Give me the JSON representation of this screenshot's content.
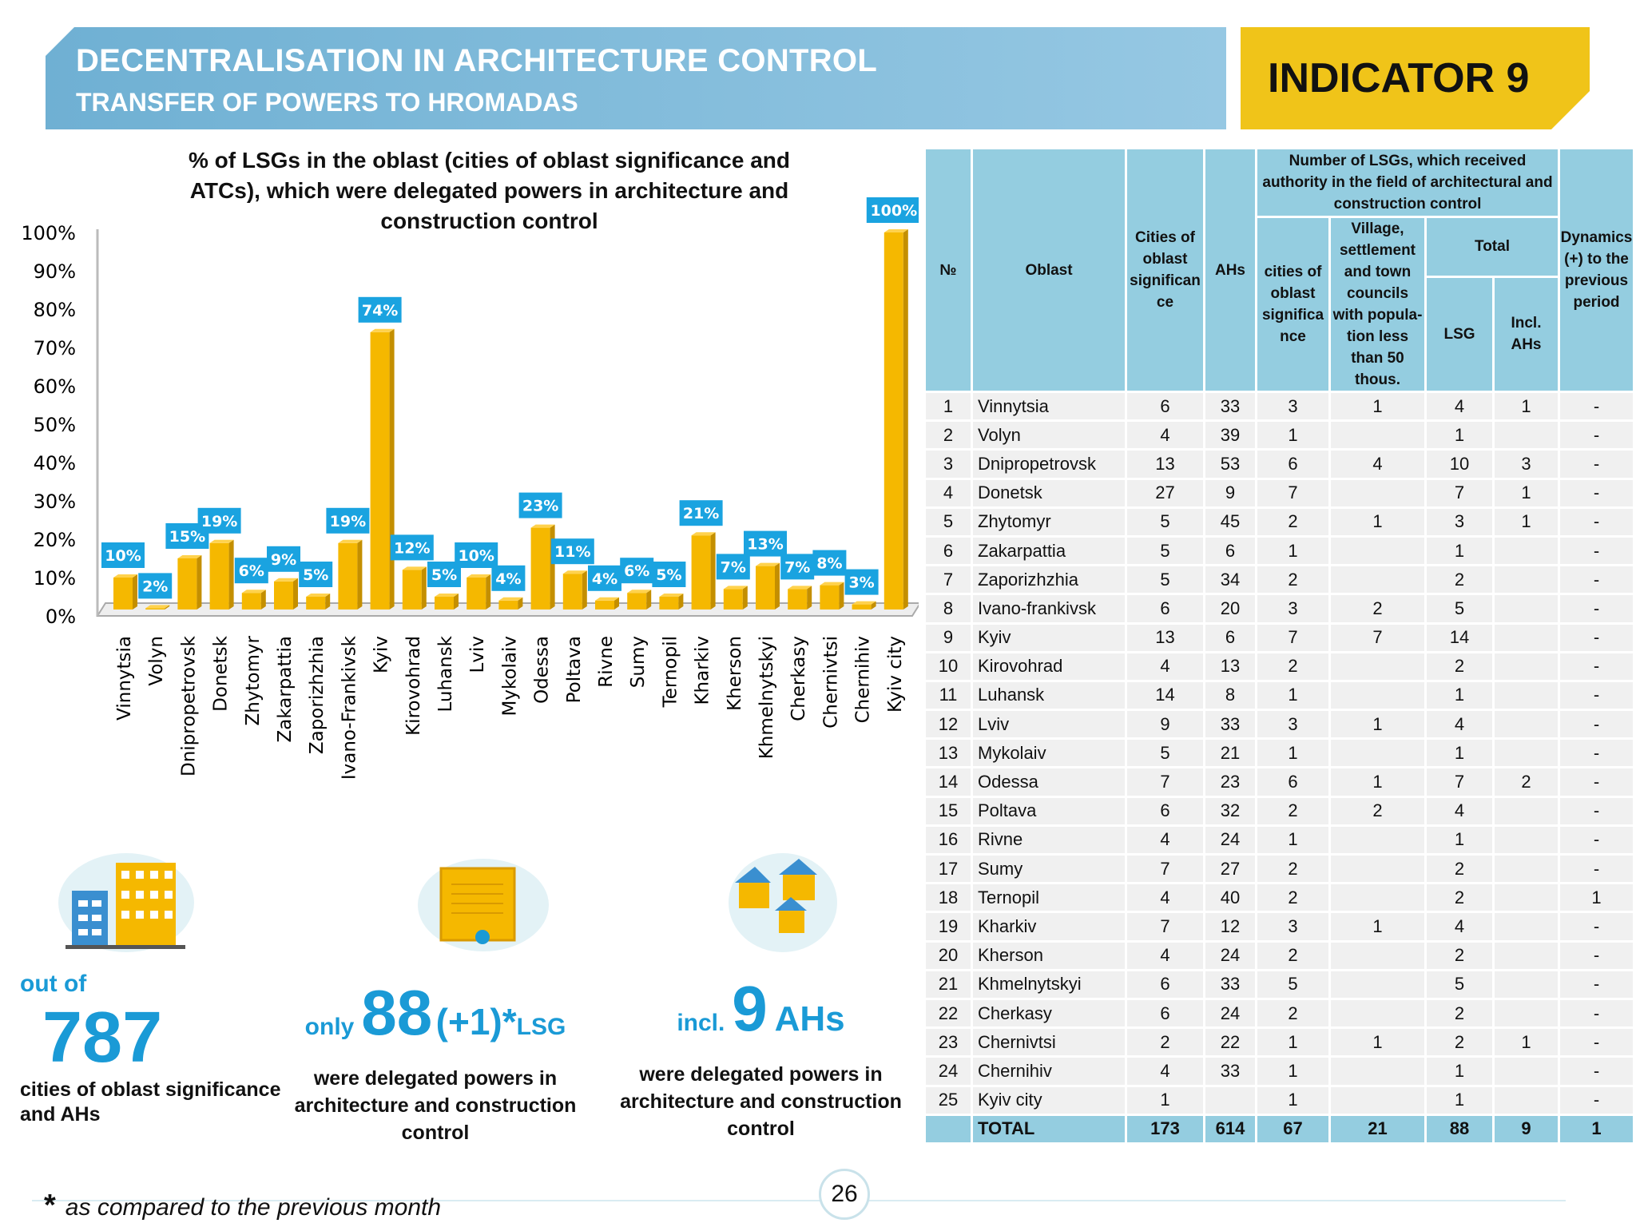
{
  "header": {
    "title": "DECENTRALISATION IN ARCHITECTURE CONTROL",
    "subtitle": "TRANSFER OF POWERS TO HROMADAS",
    "indicator": "INDICATOR 9"
  },
  "chart_data": {
    "type": "bar",
    "title": "% of LSGs in the oblast (cities of oblast significance and ATCs), which were delegated powers in architecture and construction control",
    "ylim": [
      0,
      100
    ],
    "yticks": [
      "0%",
      "10%",
      "20%",
      "30%",
      "40%",
      "50%",
      "60%",
      "70%",
      "80%",
      "90%",
      "100%"
    ],
    "categories": [
      "Vinnytsia",
      "Volyn",
      "Dnipropetrovsk",
      "Donetsk",
      "Zhytomyr",
      "Zakarpattia",
      "Zaporizhzhia",
      "Ivano-Frankivsk",
      "Kyiv",
      "Kirovohrad",
      "Luhansk",
      "Lviv",
      "Mykolaiv",
      "Odessa",
      "Poltava",
      "Rivne",
      "Sumy",
      "Ternopil",
      "Kharkiv",
      "Kherson",
      "Khmelnytskyi",
      "Cherkasy",
      "Chernivtsi",
      "Chernihiv",
      "Kyiv city"
    ],
    "values": [
      10,
      2,
      15,
      19,
      6,
      9,
      5,
      19,
      74,
      12,
      5,
      10,
      4,
      23,
      11,
      4,
      6,
      5,
      21,
      7,
      13,
      7,
      8,
      3,
      100
    ],
    "bar_color": "#f5b800",
    "label_color": "#1aa3e0"
  },
  "table": {
    "headers": {
      "no": "№",
      "oblast": "Oblast",
      "cities": "Cities of oblast significan ce",
      "ahs": "AHs",
      "group": "Number of LSGs, which received authority in the field of architectural and construction control",
      "g_cities": "cities of oblast significa nce",
      "g_village": "Village, settlement and town councils with popula-tion less than 50 thous.",
      "total": "Total",
      "lsg": "LSG",
      "incl": "Incl. AHs",
      "dyn": "Dynamics (+) to the previous period"
    },
    "rows": [
      [
        "1",
        "Vinnytsia",
        "6",
        "33",
        "3",
        "1",
        "4",
        "1",
        "-"
      ],
      [
        "2",
        "Volyn",
        "4",
        "39",
        "1",
        "",
        "1",
        "",
        "-"
      ],
      [
        "3",
        "Dnipropetrovsk",
        "13",
        "53",
        "6",
        "4",
        "10",
        "3",
        "-"
      ],
      [
        "4",
        "Donetsk",
        "27",
        "9",
        "7",
        "",
        "7",
        "1",
        "-"
      ],
      [
        "5",
        "Zhytomyr",
        "5",
        "45",
        "2",
        "1",
        "3",
        "1",
        "-"
      ],
      [
        "6",
        "Zakarpattia",
        "5",
        "6",
        "1",
        "",
        "1",
        "",
        "-"
      ],
      [
        "7",
        "Zaporizhzhia",
        "5",
        "34",
        "2",
        "",
        "2",
        "",
        "-"
      ],
      [
        "8",
        "Ivano-frankivsk",
        "6",
        "20",
        "3",
        "2",
        "5",
        "",
        "-"
      ],
      [
        "9",
        "Kyiv",
        "13",
        "6",
        "7",
        "7",
        "14",
        "",
        "-"
      ],
      [
        "10",
        "Kirovohrad",
        "4",
        "13",
        "2",
        "",
        "2",
        "",
        "-"
      ],
      [
        "11",
        "Luhansk",
        "14",
        "8",
        "1",
        "",
        "1",
        "",
        "-"
      ],
      [
        "12",
        "Lviv",
        "9",
        "33",
        "3",
        "1",
        "4",
        "",
        "-"
      ],
      [
        "13",
        "Mykolaiv",
        "5",
        "21",
        "1",
        "",
        "1",
        "",
        "-"
      ],
      [
        "14",
        "Odessa",
        "7",
        "23",
        "6",
        "1",
        "7",
        "2",
        "-"
      ],
      [
        "15",
        "Poltava",
        "6",
        "32",
        "2",
        "2",
        "4",
        "",
        "-"
      ],
      [
        "16",
        "Rivne",
        "4",
        "24",
        "1",
        "",
        "1",
        "",
        "-"
      ],
      [
        "17",
        "Sumy",
        "7",
        "27",
        "2",
        "",
        "2",
        "",
        "-"
      ],
      [
        "18",
        "Ternopil",
        "4",
        "40",
        "2",
        "",
        "2",
        "",
        "1"
      ],
      [
        "19",
        "Kharkiv",
        "7",
        "12",
        "3",
        "1",
        "4",
        "",
        "-"
      ],
      [
        "20",
        "Kherson",
        "4",
        "24",
        "2",
        "",
        "2",
        "",
        "-"
      ],
      [
        "21",
        "Khmelnytskyi",
        "6",
        "33",
        "5",
        "",
        "5",
        "",
        "-"
      ],
      [
        "22",
        "Cherkasy",
        "6",
        "24",
        "2",
        "",
        "2",
        "",
        "-"
      ],
      [
        "23",
        "Chernivtsi",
        "2",
        "22",
        "1",
        "1",
        "2",
        "1",
        "-"
      ],
      [
        "24",
        "Chernihiv",
        "4",
        "33",
        "1",
        "",
        "1",
        "",
        "-"
      ],
      [
        "25",
        "Kyiv city",
        "1",
        "",
        "1",
        "",
        "1",
        "",
        "-"
      ]
    ],
    "total": [
      "",
      "TOTAL",
      "173",
      "614",
      "67",
      "21",
      "88",
      "9",
      "1"
    ]
  },
  "stats": {
    "out_of": "out of",
    "total_num": "787",
    "total_desc": "cities of oblast significance and AHs",
    "only": "only",
    "lsg_num": "88",
    "lsg_delta": "(+1)*",
    "lsg_unit": "LSG",
    "lsg_desc": "were delegated powers in architecture and construction control",
    "incl": "incl.",
    "ah_num": "9",
    "ah_unit": "AHs",
    "ah_desc": "were delegated powers in architecture and construction control"
  },
  "footer": {
    "star": "*",
    "note": "as compared to the previous month",
    "page": "26"
  }
}
